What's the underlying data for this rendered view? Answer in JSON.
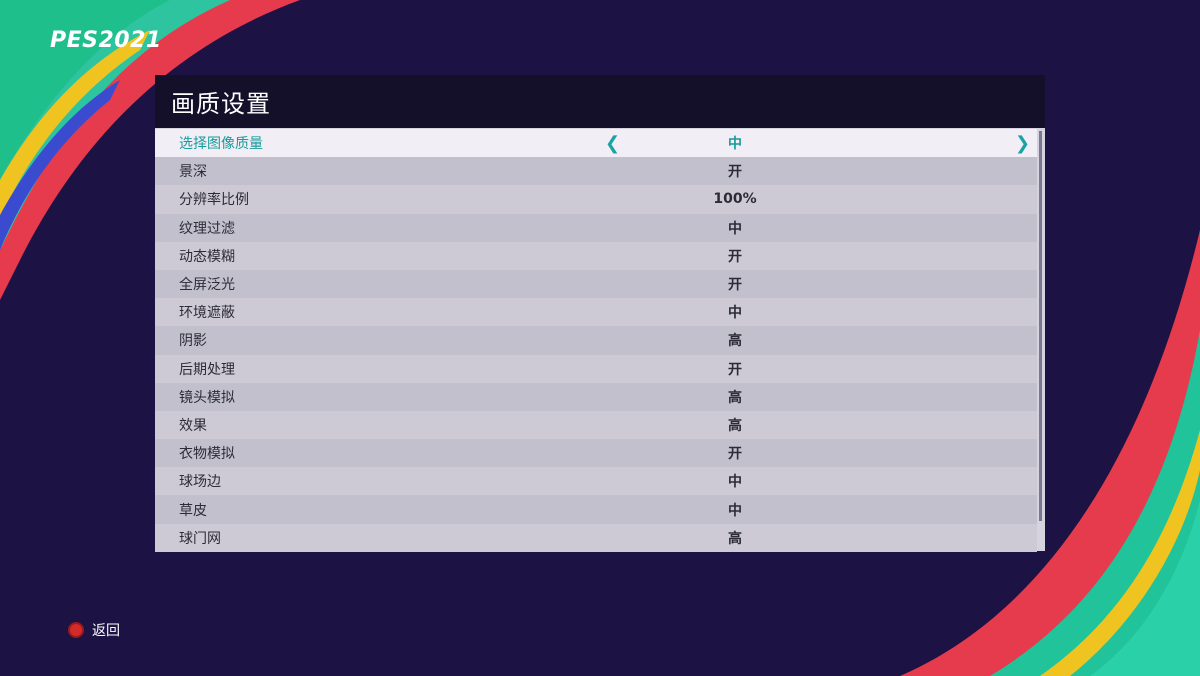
{
  "logo": "PES2021",
  "panel": {
    "title": "画质设置"
  },
  "settings": [
    {
      "label": "选择图像质量",
      "value": "中"
    },
    {
      "label": "景深",
      "value": "开"
    },
    {
      "label": "分辨率比例",
      "value": "100%"
    },
    {
      "label": "纹理过滤",
      "value": "中"
    },
    {
      "label": "动态模糊",
      "value": "开"
    },
    {
      "label": "全屏泛光",
      "value": "开"
    },
    {
      "label": "环境遮蔽",
      "value": "中"
    },
    {
      "label": "阴影",
      "value": "高"
    },
    {
      "label": "后期处理",
      "value": "开"
    },
    {
      "label": "镜头模拟",
      "value": "高"
    },
    {
      "label": "效果",
      "value": "高"
    },
    {
      "label": "衣物模拟",
      "value": "开"
    },
    {
      "label": "球场边",
      "value": "中"
    },
    {
      "label": "草皮",
      "value": "中"
    },
    {
      "label": "球门网",
      "value": "高"
    }
  ],
  "arrows": {
    "left": "❮",
    "right": "❯"
  },
  "footer": {
    "back_label": "返回"
  },
  "colors": {
    "background": "#1c1244",
    "accent": "#1aa3a5",
    "header": "#14102a"
  }
}
